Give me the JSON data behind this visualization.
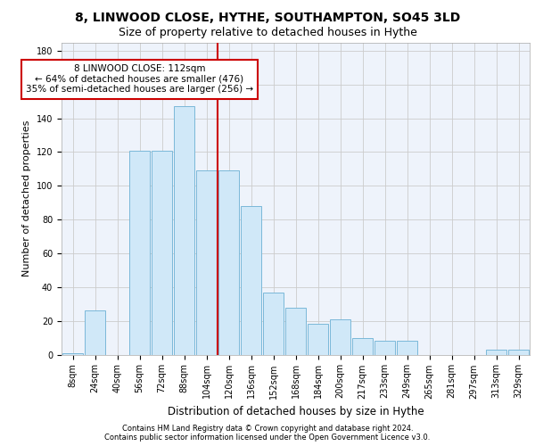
{
  "title1": "8, LINWOOD CLOSE, HYTHE, SOUTHAMPTON, SO45 3LD",
  "title2": "Size of property relative to detached houses in Hythe",
  "xlabel": "Distribution of detached houses by size in Hythe",
  "ylabel": "Number of detached properties",
  "annotation_line1": "8 LINWOOD CLOSE: 112sqm",
  "annotation_line2": "← 64% of detached houses are smaller (476)",
  "annotation_line3": "35% of semi-detached houses are larger (256) →",
  "footnote1": "Contains HM Land Registry data © Crown copyright and database right 2024.",
  "footnote2": "Contains public sector information licensed under the Open Government Licence v3.0.",
  "bar_color": "#d0e8f8",
  "bar_edge_color": "#7ab8d8",
  "vline_color": "#cc0000",
  "vline_x": 6.5,
  "categories": [
    "8sqm",
    "24sqm",
    "40sqm",
    "56sqm",
    "72sqm",
    "88sqm",
    "104sqm",
    "120sqm",
    "136sqm",
    "152sqm",
    "168sqm",
    "184sqm",
    "200sqm",
    "217sqm",
    "233sqm",
    "249sqm",
    "265sqm",
    "281sqm",
    "297sqm",
    "313sqm",
    "329sqm"
  ],
  "values": [
    1,
    26,
    0,
    121,
    121,
    147,
    109,
    109,
    88,
    37,
    28,
    18,
    21,
    10,
    8,
    8,
    0,
    0,
    0,
    3,
    3
  ],
  "ylim": [
    0,
    185
  ],
  "yticks": [
    0,
    20,
    40,
    60,
    80,
    100,
    120,
    140,
    160,
    180
  ],
  "grid_color": "#cccccc",
  "background_color": "#eef3fb",
  "title1_fontsize": 10,
  "title2_fontsize": 9,
  "xlabel_fontsize": 8.5,
  "ylabel_fontsize": 8,
  "tick_fontsize": 7,
  "annotation_fontsize": 7.5
}
